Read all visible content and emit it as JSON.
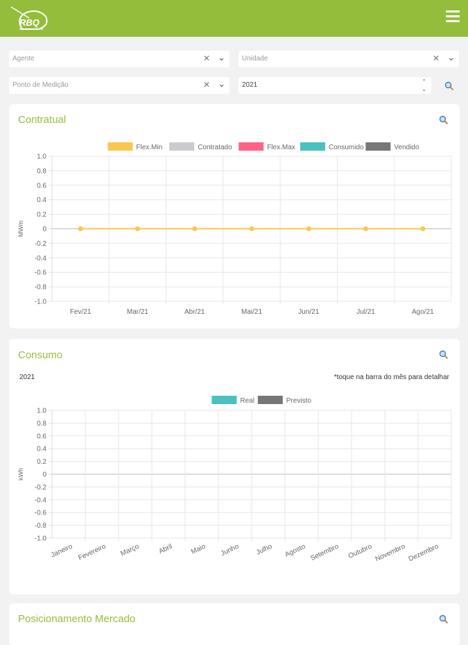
{
  "header": {
    "logo_text": "RBQ",
    "brand_color": "#94bd3c"
  },
  "filters": {
    "agente_placeholder": "Agente",
    "unidade_placeholder": "Unidade",
    "ponto_placeholder": "Ponto de Medição",
    "year_value": "2021",
    "search_icon": "search-icon"
  },
  "contratual": {
    "title": "Contratual",
    "chart_data": {
      "type": "line",
      "legend": [
        {
          "name": "Flex.Min",
          "color": "#f9c74f"
        },
        {
          "name": "Contratado",
          "color": "#c9cbcf"
        },
        {
          "name": "Flex.Max",
          "color": "#ff6384"
        },
        {
          "name": "Consumido",
          "color": "#4bc0c0"
        },
        {
          "name": "Vendido",
          "color": "#777777"
        }
      ],
      "categories": [
        "Fev/21",
        "Mar/21",
        "Abr/21",
        "Mai/21",
        "Jun/21",
        "Jul/21",
        "Ago/21"
      ],
      "series": [
        {
          "name": "Flex.Min",
          "values": [
            0,
            0,
            0,
            0,
            0,
            0,
            0
          ]
        }
      ],
      "ylabel": "MWm",
      "ylim": [
        -1.0,
        1.0
      ],
      "yticks": [
        "1.0",
        "0.8",
        "0.6",
        "0.4",
        "0.2",
        "0",
        "-0.2",
        "-0.4",
        "-0.6",
        "-0.8",
        "-1.0"
      ],
      "legend_position": "top-center",
      "grid": true
    }
  },
  "consumo": {
    "title": "Consumo",
    "year": "2021",
    "hint": "*toque na barra do mês para detalhar",
    "chart_data": {
      "type": "bar",
      "legend": [
        {
          "name": "Real",
          "color": "#4bc0c0"
        },
        {
          "name": "Previsto",
          "color": "#777777"
        }
      ],
      "categories": [
        "Janeiro",
        "Fevereiro",
        "Março",
        "Abril",
        "Maio",
        "Junho",
        "Julho",
        "Agosto",
        "Setembro",
        "Outubro",
        "Novembro",
        "Dezembro"
      ],
      "series": [],
      "ylabel": "kWh",
      "ylim": [
        -1.0,
        1.0
      ],
      "yticks": [
        "1.0",
        "0.8",
        "0.6",
        "0.4",
        "0.2",
        "0",
        "-0.2",
        "-0.4",
        "-0.6",
        "-0.8",
        "-1.0"
      ],
      "legend_position": "top-center",
      "grid": true
    }
  },
  "mercado": {
    "title": "Posicionamento Mercado"
  }
}
